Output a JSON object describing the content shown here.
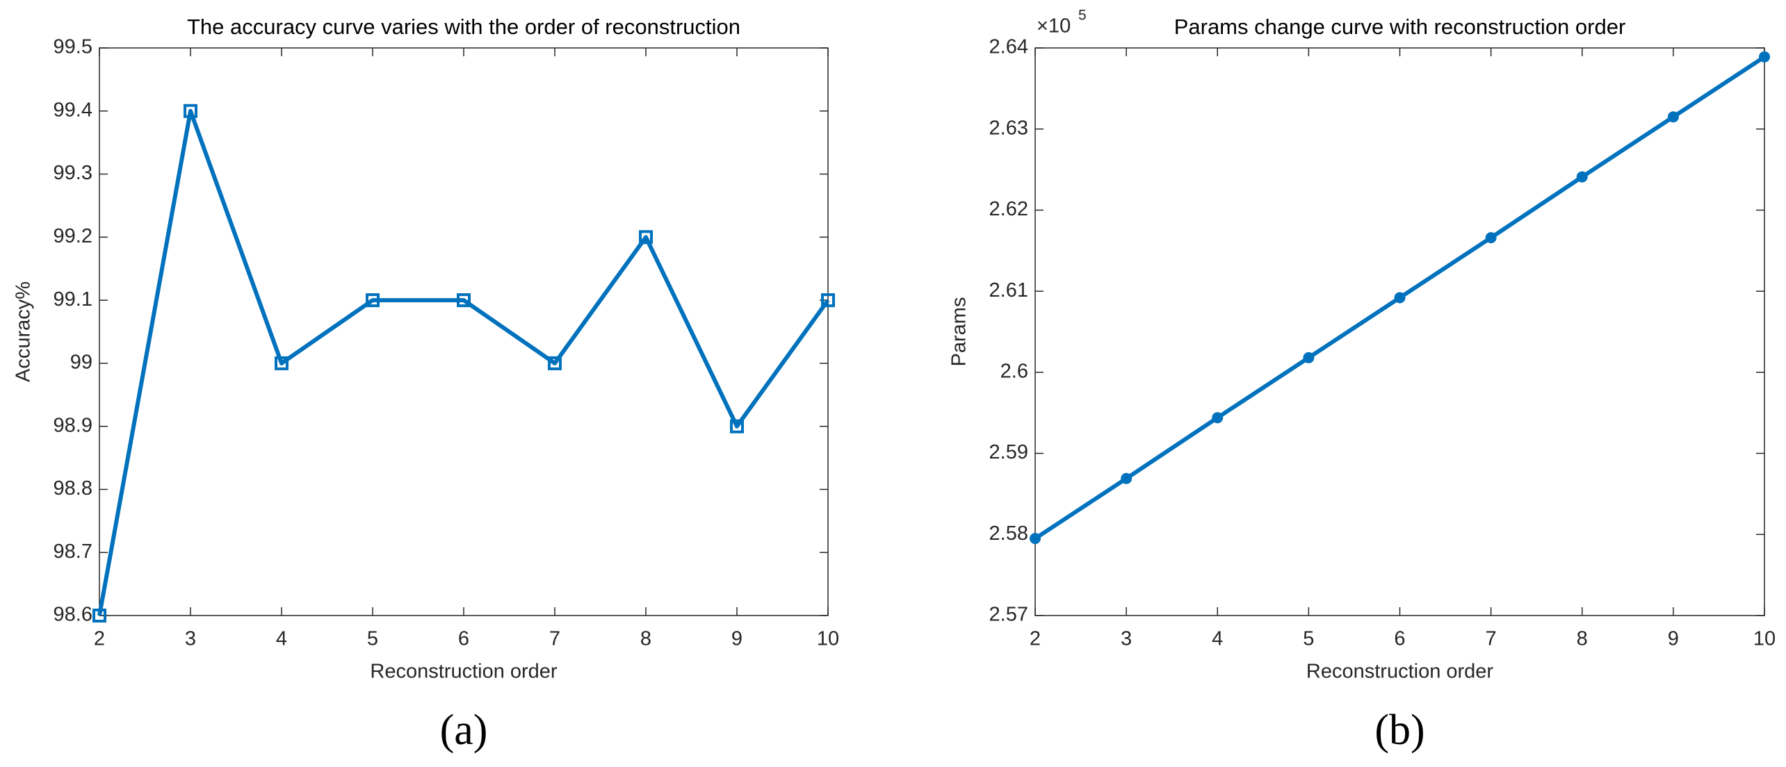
{
  "chart_data": [
    {
      "type": "line",
      "title": "The accuracy curve varies with the order of reconstruction",
      "xlabel": "Reconstruction order",
      "ylabel": "Accuracy%",
      "caption": "(a)",
      "x": [
        2,
        3,
        4,
        5,
        6,
        7,
        8,
        9,
        10
      ],
      "series": [
        {
          "color": "#0072bd",
          "marker": "square",
          "values": [
            98.6,
            99.4,
            99,
            99.1,
            99.1,
            99,
            99.2,
            98.9,
            99.1
          ]
        }
      ],
      "xlim": [
        2,
        10
      ],
      "xticks": [
        2,
        3,
        4,
        5,
        6,
        7,
        8,
        9,
        10
      ],
      "ylim": [
        98.6,
        99.5
      ],
      "yticks": [
        98.6,
        98.7,
        98.8,
        98.9,
        99,
        99.1,
        99.2,
        99.3,
        99.4,
        99.5
      ]
    },
    {
      "type": "line",
      "title": "Params change curve with reconstruction order",
      "xlabel": "Reconstruction order",
      "ylabel": "Params",
      "caption": "(b)",
      "y_multiplier_base": "×10",
      "y_multiplier_exponent": "5",
      "x": [
        2,
        3,
        4,
        5,
        6,
        7,
        8,
        9,
        10
      ],
      "series": [
        {
          "color": "#0072bd",
          "marker": "circle",
          "values": [
            2.5795,
            2.5869,
            2.5944,
            2.6018,
            2.6092,
            2.6166,
            2.6241,
            2.6315,
            2.6389
          ]
        }
      ],
      "xlim": [
        2,
        10
      ],
      "xticks": [
        2,
        3,
        4,
        5,
        6,
        7,
        8,
        9,
        10
      ],
      "ylim": [
        2.57,
        2.64
      ],
      "yticks": [
        2.57,
        2.58,
        2.59,
        2.6,
        2.61,
        2.62,
        2.63,
        2.64
      ]
    }
  ]
}
